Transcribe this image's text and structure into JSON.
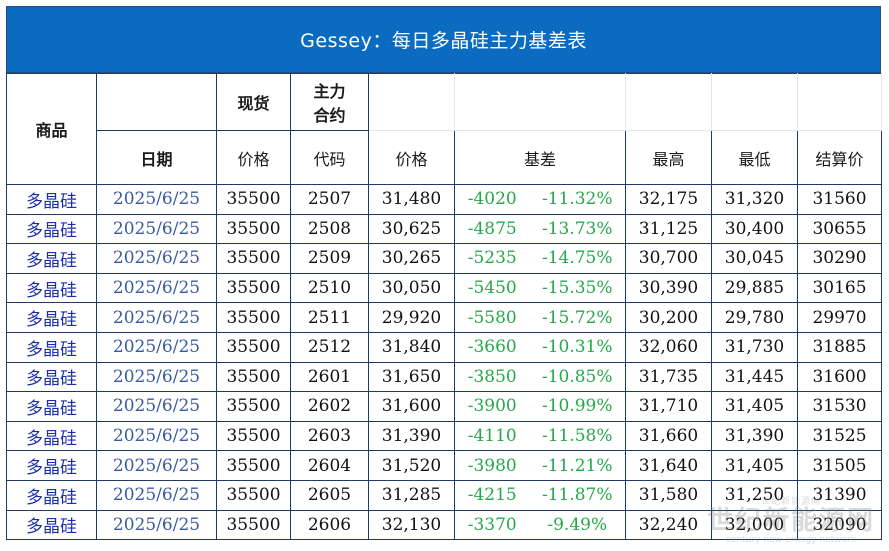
{
  "title": "Gessey：每日多晶硅主力基差表",
  "headers": {
    "product": "商品",
    "spot": "现货",
    "main_contract": "主力\n合约",
    "date": "日期",
    "spot_price": "价格",
    "code": "代码",
    "price": "价格",
    "basis": "基差",
    "high": "最高",
    "low": "最低",
    "settle": "结算价"
  },
  "rows": [
    {
      "name": "多晶硅",
      "date": "2025/6/25",
      "spot": "35500",
      "code": "2507",
      "price": "31,480",
      "basis": "-4020",
      "basis_pct": "-11.32%",
      "high": "32,175",
      "low": "31,320",
      "settle": "31560"
    },
    {
      "name": "多晶硅",
      "date": "2025/6/25",
      "spot": "35500",
      "code": "2508",
      "price": "30,625",
      "basis": "-4875",
      "basis_pct": "-13.73%",
      "high": "31,125",
      "low": "30,400",
      "settle": "30655"
    },
    {
      "name": "多晶硅",
      "date": "2025/6/25",
      "spot": "35500",
      "code": "2509",
      "price": "30,265",
      "basis": "-5235",
      "basis_pct": "-14.75%",
      "high": "30,700",
      "low": "30,045",
      "settle": "30290"
    },
    {
      "name": "多晶硅",
      "date": "2025/6/25",
      "spot": "35500",
      "code": "2510",
      "price": "30,050",
      "basis": "-5450",
      "basis_pct": "-15.35%",
      "high": "30,390",
      "low": "29,885",
      "settle": "30165"
    },
    {
      "name": "多晶硅",
      "date": "2025/6/25",
      "spot": "35500",
      "code": "2511",
      "price": "29,920",
      "basis": "-5580",
      "basis_pct": "-15.72%",
      "high": "30,200",
      "low": "29,780",
      "settle": "29970"
    },
    {
      "name": "多晶硅",
      "date": "2025/6/25",
      "spot": "35500",
      "code": "2512",
      "price": "31,840",
      "basis": "-3660",
      "basis_pct": "-10.31%",
      "high": "32,060",
      "low": "31,730",
      "settle": "31885"
    },
    {
      "name": "多晶硅",
      "date": "2025/6/25",
      "spot": "35500",
      "code": "2601",
      "price": "31,650",
      "basis": "-3850",
      "basis_pct": "-10.85%",
      "high": "31,735",
      "low": "31,445",
      "settle": "31600"
    },
    {
      "name": "多晶硅",
      "date": "2025/6/25",
      "spot": "35500",
      "code": "2602",
      "price": "31,600",
      "basis": "-3900",
      "basis_pct": "-10.99%",
      "high": "31,710",
      "low": "31,405",
      "settle": "31530"
    },
    {
      "name": "多晶硅",
      "date": "2025/6/25",
      "spot": "35500",
      "code": "2603",
      "price": "31,390",
      "basis": "-4110",
      "basis_pct": "-11.58%",
      "high": "31,660",
      "low": "31,390",
      "settle": "31525"
    },
    {
      "name": "多晶硅",
      "date": "2025/6/25",
      "spot": "35500",
      "code": "2604",
      "price": "31,520",
      "basis": "-3980",
      "basis_pct": "-11.21%",
      "high": "31,640",
      "low": "31,405",
      "settle": "31505"
    },
    {
      "name": "多晶硅",
      "date": "2025/6/25",
      "spot": "35500",
      "code": "2605",
      "price": "31,285",
      "basis": "-4215",
      "basis_pct": "-11.87%",
      "high": "31,580",
      "low": "31,250",
      "settle": "31390"
    },
    {
      "name": "多晶硅",
      "date": "2025/6/25",
      "spot": "35500",
      "code": "2606",
      "price": "32,130",
      "basis": "-3370",
      "basis_pct": "-9.49%",
      "high": "32,240",
      "low": "32,000",
      "settle": "32090"
    }
  ],
  "watermark": {
    "top": "世纪新能源网",
    "mid": "世纪新能源网",
    "bottom": "century-new-energy network"
  },
  "colors": {
    "title_bg": "#0a6bc1",
    "name_text": "#1c2fa8",
    "date_text": "#3a5aa0",
    "basis_text": "#26a84a",
    "border": "#1f3b63"
  }
}
